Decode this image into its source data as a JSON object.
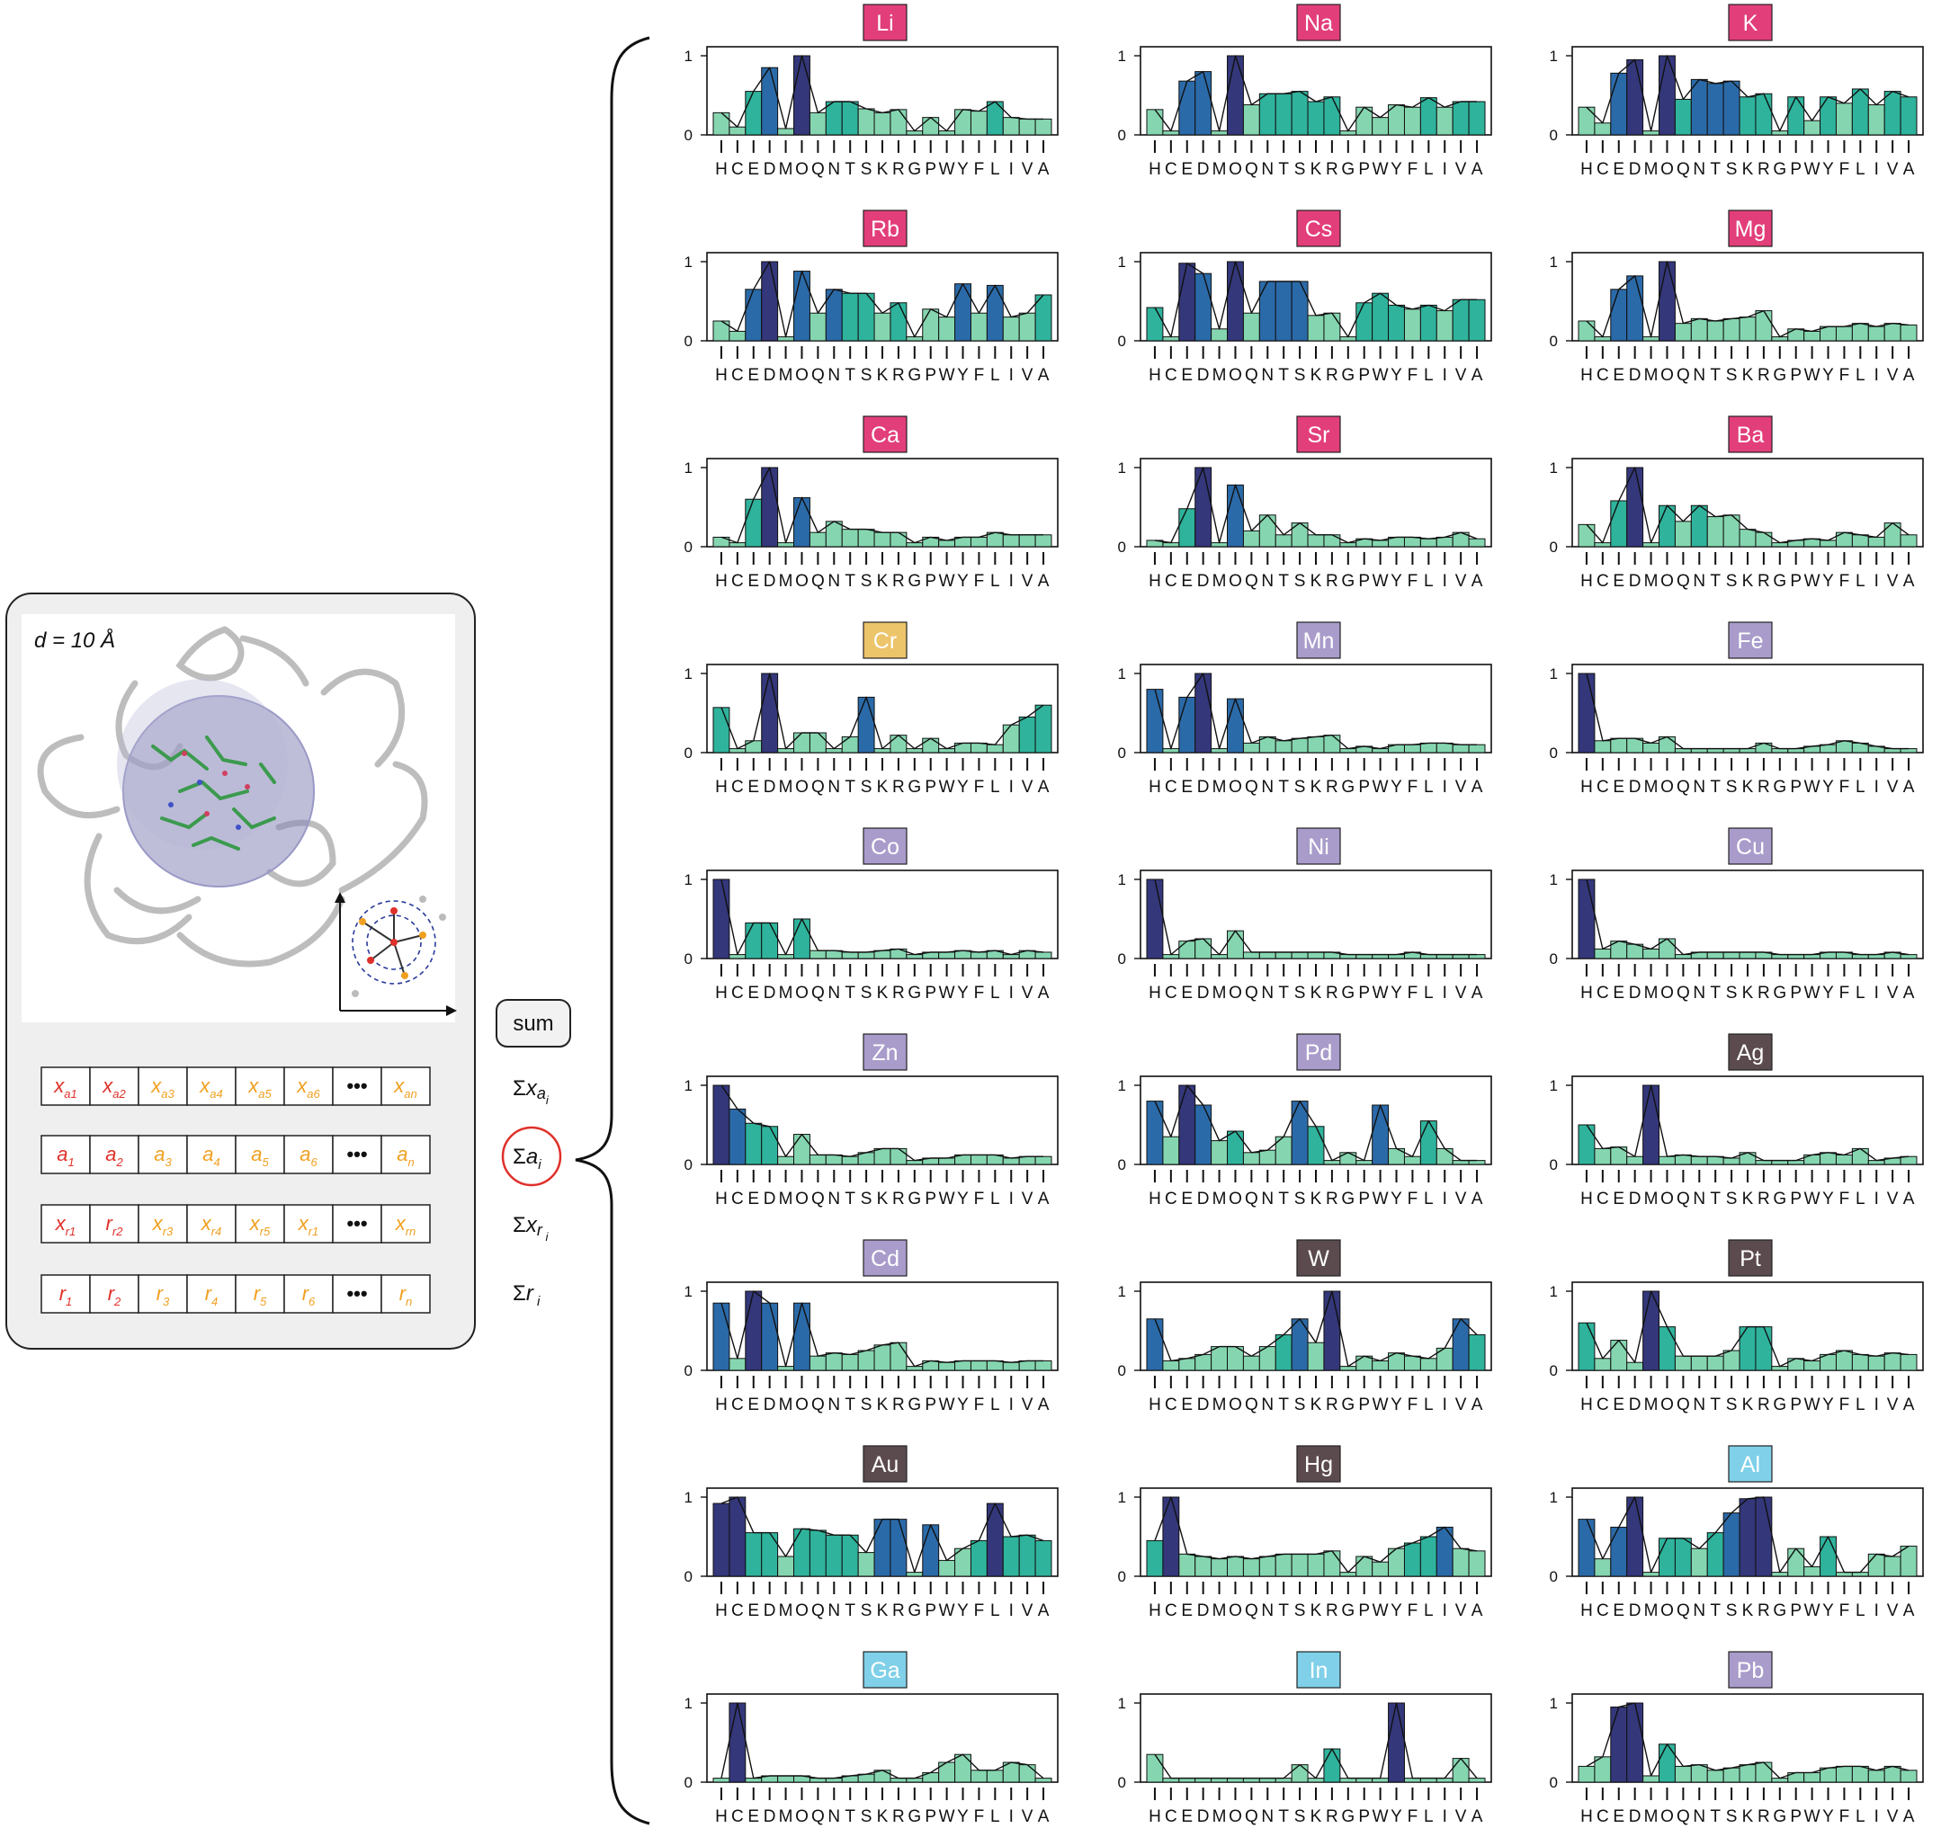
{
  "left_panel": {
    "distance_label": "d = 10 Å",
    "feature_rows": [
      {
        "cells": [
          "x_a1",
          "x_a2",
          "x_a3",
          "x_a4",
          "x_a5",
          "x_a6",
          "•••",
          "x_an"
        ]
      },
      {
        "cells": [
          "a_1",
          "a_2",
          "a_3",
          "a_4",
          "a_5",
          "a_6",
          "•••",
          "a_n"
        ]
      },
      {
        "cells": [
          "x_r1",
          "r_r2",
          "x_r3",
          "x_r4",
          "x_r5",
          "x_r1",
          "•••",
          "x_rn"
        ]
      },
      {
        "cells": [
          "r_1",
          "r_2",
          "r_3",
          "r_4",
          "r_5",
          "r_6",
          "•••",
          "r_n"
        ]
      }
    ],
    "sum_button": "sum",
    "sum_labels": [
      "Σx a_i",
      "Σa_i",
      "Σx r_i",
      "Σr_i"
    ],
    "highlighted_sum": "Σa_i"
  },
  "colors": {
    "alkali": "#e23e7a",
    "transition_purple": "#a99ccb",
    "chromium": "#ecc46a",
    "heavy": "#5b4a4e",
    "group13": "#7fd0e8",
    "bar_low": "#85d6b0",
    "bar_mid": "#2fb39c",
    "bar_high": "#2b6aa8",
    "bar_max": "#34377a"
  },
  "chart_data": {
    "type": "bar",
    "categories": [
      "H",
      "C",
      "E",
      "D",
      "M",
      "O",
      "Q",
      "N",
      "T",
      "S",
      "K",
      "R",
      "G",
      "P",
      "W",
      "Y",
      "F",
      "L",
      "I",
      "V",
      "A"
    ],
    "ylim": [
      0,
      1
    ],
    "yticks": [
      "0",
      "1"
    ],
    "xticklabels": "HCEDMOQNTSKRGPWYFLIVA",
    "panels": [
      {
        "metal": "Li",
        "chip_color": "#e23e7a",
        "values": [
          0.28,
          0.1,
          0.55,
          0.85,
          0.08,
          1.0,
          0.28,
          0.42,
          0.42,
          0.33,
          0.28,
          0.32,
          0.05,
          0.22,
          0.05,
          0.32,
          0.3,
          0.42,
          0.22,
          0.2,
          0.2
        ]
      },
      {
        "metal": "Na",
        "chip_color": "#e23e7a",
        "values": [
          0.32,
          0.05,
          0.68,
          0.8,
          0.05,
          1.0,
          0.38,
          0.52,
          0.52,
          0.55,
          0.42,
          0.48,
          0.05,
          0.35,
          0.22,
          0.38,
          0.35,
          0.47,
          0.35,
          0.42,
          0.42
        ]
      },
      {
        "metal": "K",
        "chip_color": "#e23e7a",
        "values": [
          0.35,
          0.15,
          0.78,
          0.95,
          0.05,
          1.0,
          0.45,
          0.7,
          0.65,
          0.68,
          0.48,
          0.52,
          0.05,
          0.48,
          0.18,
          0.48,
          0.4,
          0.58,
          0.38,
          0.55,
          0.48
        ]
      },
      {
        "metal": "Rb",
        "chip_color": "#e23e7a",
        "values": [
          0.25,
          0.12,
          0.65,
          1.0,
          0.05,
          0.88,
          0.35,
          0.65,
          0.6,
          0.6,
          0.35,
          0.48,
          0.05,
          0.4,
          0.3,
          0.72,
          0.35,
          0.7,
          0.3,
          0.35,
          0.58
        ]
      },
      {
        "metal": "Cs",
        "chip_color": "#e23e7a",
        "values": [
          0.42,
          0.05,
          0.98,
          0.85,
          0.15,
          1.0,
          0.35,
          0.75,
          0.75,
          0.75,
          0.32,
          0.35,
          0.05,
          0.48,
          0.6,
          0.45,
          0.4,
          0.45,
          0.38,
          0.52,
          0.52
        ]
      },
      {
        "metal": "Mg",
        "chip_color": "#e23e7a",
        "values": [
          0.25,
          0.05,
          0.65,
          0.82,
          0.05,
          1.0,
          0.22,
          0.28,
          0.25,
          0.28,
          0.3,
          0.38,
          0.05,
          0.15,
          0.12,
          0.18,
          0.18,
          0.22,
          0.18,
          0.22,
          0.2
        ]
      },
      {
        "metal": "Ca",
        "chip_color": "#e23e7a",
        "values": [
          0.12,
          0.05,
          0.6,
          1.0,
          0.05,
          0.62,
          0.18,
          0.32,
          0.22,
          0.22,
          0.18,
          0.18,
          0.05,
          0.12,
          0.08,
          0.12,
          0.12,
          0.18,
          0.15,
          0.15,
          0.15
        ]
      },
      {
        "metal": "Sr",
        "chip_color": "#e23e7a",
        "values": [
          0.08,
          0.05,
          0.48,
          1.0,
          0.05,
          0.78,
          0.2,
          0.4,
          0.15,
          0.3,
          0.15,
          0.15,
          0.05,
          0.1,
          0.08,
          0.12,
          0.12,
          0.1,
          0.12,
          0.18,
          0.1
        ]
      },
      {
        "metal": "Ba",
        "chip_color": "#e23e7a",
        "values": [
          0.28,
          0.05,
          0.58,
          1.0,
          0.05,
          0.52,
          0.32,
          0.52,
          0.38,
          0.4,
          0.22,
          0.18,
          0.05,
          0.08,
          0.1,
          0.08,
          0.18,
          0.15,
          0.12,
          0.3,
          0.15
        ]
      },
      {
        "metal": "Cr",
        "chip_color": "#ecc46a",
        "values": [
          0.57,
          0.05,
          0.15,
          1.0,
          0.05,
          0.25,
          0.25,
          0.05,
          0.2,
          0.7,
          0.05,
          0.22,
          0.05,
          0.18,
          0.05,
          0.12,
          0.12,
          0.1,
          0.35,
          0.45,
          0.6
        ]
      },
      {
        "metal": "Mn",
        "chip_color": "#a99ccb",
        "values": [
          0.8,
          0.05,
          0.7,
          1.0,
          0.05,
          0.68,
          0.12,
          0.2,
          0.15,
          0.18,
          0.2,
          0.22,
          0.05,
          0.08,
          0.05,
          0.1,
          0.1,
          0.12,
          0.12,
          0.1,
          0.1
        ]
      },
      {
        "metal": "Fe",
        "chip_color": "#a99ccb",
        "values": [
          1.0,
          0.15,
          0.18,
          0.18,
          0.12,
          0.2,
          0.05,
          0.05,
          0.05,
          0.05,
          0.05,
          0.12,
          0.05,
          0.05,
          0.08,
          0.1,
          0.15,
          0.12,
          0.08,
          0.05,
          0.05
        ]
      },
      {
        "metal": "Co",
        "chip_color": "#a99ccb",
        "values": [
          1.0,
          0.05,
          0.45,
          0.45,
          0.05,
          0.5,
          0.1,
          0.1,
          0.08,
          0.08,
          0.1,
          0.12,
          0.05,
          0.08,
          0.08,
          0.1,
          0.08,
          0.1,
          0.05,
          0.1,
          0.08
        ]
      },
      {
        "metal": "Ni",
        "chip_color": "#a99ccb",
        "values": [
          1.0,
          0.05,
          0.22,
          0.25,
          0.05,
          0.35,
          0.08,
          0.08,
          0.08,
          0.08,
          0.08,
          0.08,
          0.05,
          0.05,
          0.05,
          0.05,
          0.08,
          0.05,
          0.05,
          0.05,
          0.05
        ]
      },
      {
        "metal": "Cu",
        "chip_color": "#a99ccb",
        "values": [
          1.0,
          0.12,
          0.22,
          0.18,
          0.12,
          0.25,
          0.05,
          0.08,
          0.08,
          0.08,
          0.08,
          0.08,
          0.05,
          0.05,
          0.05,
          0.08,
          0.08,
          0.05,
          0.05,
          0.08,
          0.05
        ]
      },
      {
        "metal": "Zn",
        "chip_color": "#a99ccb",
        "values": [
          1.0,
          0.7,
          0.52,
          0.48,
          0.1,
          0.38,
          0.12,
          0.12,
          0.1,
          0.15,
          0.2,
          0.2,
          0.05,
          0.08,
          0.08,
          0.12,
          0.12,
          0.12,
          0.08,
          0.1,
          0.1
        ]
      },
      {
        "metal": "Pd",
        "chip_color": "#a99ccb",
        "values": [
          0.8,
          0.35,
          1.0,
          0.75,
          0.3,
          0.42,
          0.15,
          0.18,
          0.35,
          0.8,
          0.48,
          0.05,
          0.15,
          0.05,
          0.75,
          0.2,
          0.1,
          0.55,
          0.2,
          0.05,
          0.05
        ]
      },
      {
        "metal": "Ag",
        "chip_color": "#5b4a4e",
        "values": [
          0.5,
          0.2,
          0.22,
          0.1,
          1.0,
          0.1,
          0.12,
          0.1,
          0.1,
          0.08,
          0.15,
          0.05,
          0.05,
          0.05,
          0.12,
          0.15,
          0.12,
          0.2,
          0.05,
          0.08,
          0.1
        ]
      },
      {
        "metal": "Cd",
        "chip_color": "#a99ccb",
        "values": [
          0.85,
          0.15,
          1.0,
          0.85,
          0.05,
          0.85,
          0.18,
          0.22,
          0.2,
          0.25,
          0.32,
          0.35,
          0.05,
          0.12,
          0.1,
          0.12,
          0.12,
          0.12,
          0.1,
          0.12,
          0.12
        ]
      },
      {
        "metal": "W",
        "chip_color": "#5b4a4e",
        "values": [
          0.65,
          0.12,
          0.15,
          0.2,
          0.3,
          0.3,
          0.18,
          0.3,
          0.45,
          0.65,
          0.35,
          1.0,
          0.05,
          0.18,
          0.12,
          0.22,
          0.18,
          0.15,
          0.28,
          0.65,
          0.45
        ]
      },
      {
        "metal": "Pt",
        "chip_color": "#5b4a4e",
        "values": [
          0.6,
          0.15,
          0.38,
          0.1,
          1.0,
          0.55,
          0.18,
          0.18,
          0.18,
          0.25,
          0.55,
          0.55,
          0.05,
          0.15,
          0.12,
          0.2,
          0.25,
          0.2,
          0.18,
          0.22,
          0.2
        ]
      },
      {
        "metal": "Au",
        "chip_color": "#5b4a4e",
        "values": [
          0.92,
          1.0,
          0.55,
          0.55,
          0.25,
          0.6,
          0.58,
          0.52,
          0.52,
          0.3,
          0.72,
          0.72,
          0.05,
          0.65,
          0.2,
          0.35,
          0.45,
          0.92,
          0.5,
          0.52,
          0.45
        ]
      },
      {
        "metal": "Hg",
        "chip_color": "#5b4a4e",
        "values": [
          0.45,
          1.0,
          0.28,
          0.25,
          0.22,
          0.25,
          0.22,
          0.25,
          0.28,
          0.28,
          0.28,
          0.32,
          0.05,
          0.25,
          0.18,
          0.35,
          0.42,
          0.5,
          0.62,
          0.35,
          0.32
        ]
      },
      {
        "metal": "Al",
        "chip_color": "#7fd0e8",
        "values": [
          0.72,
          0.22,
          0.62,
          1.0,
          0.05,
          0.48,
          0.48,
          0.35,
          0.55,
          0.8,
          0.98,
          1.0,
          0.05,
          0.35,
          0.12,
          0.5,
          0.05,
          0.05,
          0.28,
          0.25,
          0.38
        ]
      },
      {
        "metal": "Ga",
        "chip_color": "#7fd0e8",
        "values": [
          0.05,
          1.0,
          0.05,
          0.08,
          0.08,
          0.08,
          0.05,
          0.05,
          0.08,
          0.1,
          0.15,
          0.05,
          0.05,
          0.12,
          0.25,
          0.35,
          0.15,
          0.15,
          0.25,
          0.22,
          0.05
        ]
      },
      {
        "metal": "In",
        "chip_color": "#7fd0e8",
        "values": [
          0.35,
          0.05,
          0.05,
          0.05,
          0.05,
          0.05,
          0.05,
          0.05,
          0.05,
          0.22,
          0.05,
          0.42,
          0.05,
          0.05,
          0.05,
          1.0,
          0.05,
          0.05,
          0.05,
          0.3,
          0.05
        ]
      },
      {
        "metal": "Pb",
        "chip_color": "#a99ccb",
        "values": [
          0.2,
          0.32,
          0.95,
          1.0,
          0.08,
          0.48,
          0.2,
          0.22,
          0.15,
          0.18,
          0.22,
          0.25,
          0.05,
          0.12,
          0.12,
          0.18,
          0.2,
          0.2,
          0.15,
          0.2,
          0.15
        ]
      }
    ]
  }
}
